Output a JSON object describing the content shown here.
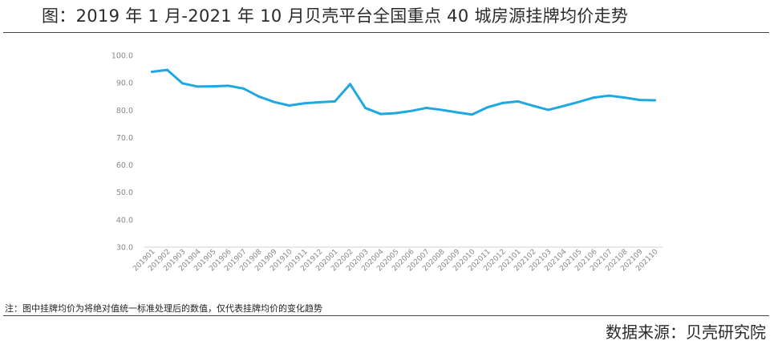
{
  "header": {
    "title": "图：2019 年 1 月-2021 年 10 月贝壳平台全国重点 40 城房源挂牌均价走势"
  },
  "footer": {
    "note": "注：图中挂牌均价为将绝对值统一标准处理后的数值，仅代表挂牌均价的变化趋势",
    "source": "数据来源：贝壳研究院"
  },
  "chart_data": {
    "type": "line",
    "title": "",
    "xlabel": "",
    "ylabel": "",
    "ylim": [
      30,
      100
    ],
    "yticks": [
      30,
      40,
      50,
      60,
      70,
      80,
      90,
      100
    ],
    "ytick_labels": [
      "30.0",
      "40.0",
      "50.0",
      "60.0",
      "70.0",
      "80.0",
      "90.0",
      "100.0"
    ],
    "grid": false,
    "legend": "none",
    "line_color": "#1fa8e0",
    "categories": [
      "201901",
      "201902",
      "201903",
      "201904",
      "201905",
      "201906",
      "201907",
      "201908",
      "201909",
      "201910",
      "201911",
      "201912",
      "202001",
      "202002",
      "202003",
      "202004",
      "202005",
      "202006",
      "202007",
      "202008",
      "202009",
      "202010",
      "202011",
      "202012",
      "202101",
      "202102",
      "202103",
      "202104",
      "202105",
      "202106",
      "202107",
      "202108",
      "202109",
      "202110"
    ],
    "series": [
      {
        "values": [
          94.0,
          94.7,
          89.8,
          88.6,
          88.7,
          88.9,
          87.9,
          85.0,
          83.0,
          81.7,
          82.5,
          82.9,
          83.2,
          89.5,
          80.8,
          78.6,
          78.9,
          79.7,
          80.8,
          80.1,
          79.2,
          78.4,
          81.0,
          82.6,
          83.2,
          81.6,
          80.1,
          81.5,
          83.0,
          84.6,
          85.3,
          84.6,
          83.7,
          83.6
        ]
      }
    ]
  }
}
